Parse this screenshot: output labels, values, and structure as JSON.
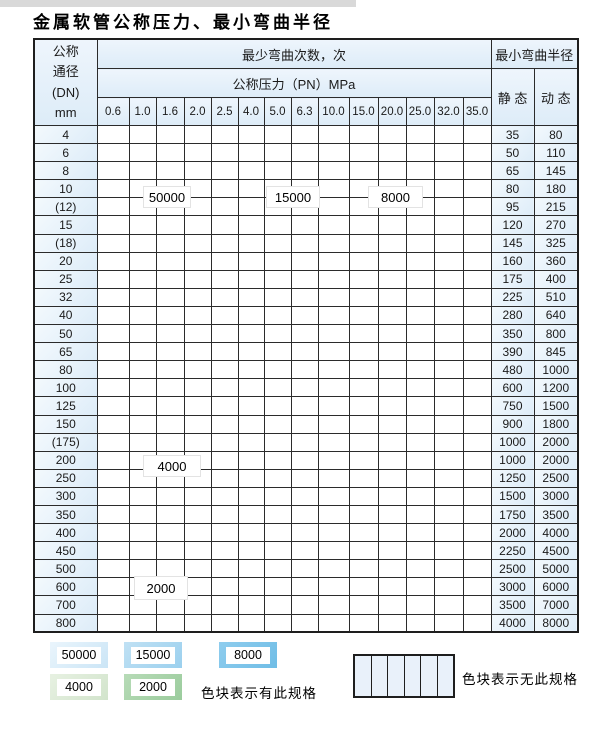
{
  "title": "金属软管公称压力、最小弯曲半径",
  "colors": {
    "blue_50000": "#d3e9f8",
    "blue_15000": "#a9d6f0",
    "blue_8000": "#7fc3e8",
    "green_4000": "#dcead7",
    "green_2000": "#a9d3aa",
    "hatch_bg": "#eef4fb",
    "grid_line": "#2b2b2b",
    "header_bg": "#e4eff9"
  },
  "table": {
    "header": {
      "dn_lines": "公称\n通径\n(DN)\nmm",
      "bend_cycles": "最少弯曲次数，次",
      "pressure": "公称压力（PN）MPa",
      "pressure_values": [
        "0.6",
        "1.0",
        "1.6",
        "2.0",
        "2.5",
        "4.0",
        "5.0",
        "6.3",
        "10.0",
        "15.0",
        "20.0",
        "25.0",
        "32.0",
        "35.0"
      ],
      "radius": "最小弯曲半径",
      "static_label": "静 态",
      "dynamic_label": "动 态"
    },
    "cell_code_meaning": {
      "1": "50000次区",
      "2": "15000次区",
      "3": "8000次区",
      "4": "4000次区",
      "5": "2000次区",
      "x": "无此规格"
    },
    "rows": [
      {
        "dn": "4",
        "cells": "11111222233333",
        "static": "35",
        "dynamic": "80"
      },
      {
        "dn": "6",
        "cells": "111112222333xx",
        "static": "50",
        "dynamic": "110"
      },
      {
        "dn": "8",
        "cells": "111112222333xx",
        "static": "65",
        "dynamic": "145"
      },
      {
        "dn": "10",
        "cells": "111112222333xx",
        "static": "80",
        "dynamic": "180"
      },
      {
        "dn": "(12)",
        "cells": "111112222333xx",
        "static": "95",
        "dynamic": "215"
      },
      {
        "dn": "15",
        "cells": "111112223333xx",
        "static": "120",
        "dynamic": "270"
      },
      {
        "dn": "(18)",
        "cells": "11111222333xxx",
        "static": "145",
        "dynamic": "325"
      },
      {
        "dn": "20",
        "cells": "11111222333xxx",
        "static": "160",
        "dynamic": "360"
      },
      {
        "dn": "25",
        "cells": "1111122233xxxx",
        "static": "175",
        "dynamic": "400"
      },
      {
        "dn": "32",
        "cells": "111112233xxxxx",
        "static": "225",
        "dynamic": "510"
      },
      {
        "dn": "40",
        "cells": "111112233xxxxx",
        "static": "280",
        "dynamic": "640"
      },
      {
        "dn": "50",
        "cells": "11112233xxxxxx",
        "static": "350",
        "dynamic": "800"
      },
      {
        "dn": "65",
        "cells": "11112233xxxxxx",
        "static": "390",
        "dynamic": "845"
      },
      {
        "dn": "80",
        "cells": "1112233xxxxxxx",
        "static": "480",
        "dynamic": "1000"
      },
      {
        "dn": "100",
        "cells": "444444xxxxxxxx",
        "static": "600",
        "dynamic": "1200"
      },
      {
        "dn": "125",
        "cells": "444444xxxxxxxx",
        "static": "750",
        "dynamic": "1500"
      },
      {
        "dn": "150",
        "cells": "444444xxxxxxxx",
        "static": "900",
        "dynamic": "1800"
      },
      {
        "dn": "(175)",
        "cells": "444444xxxxxxxx",
        "static": "1000",
        "dynamic": "2000"
      },
      {
        "dn": "200",
        "cells": "444444xxxxxxxx",
        "static": "1000",
        "dynamic": "2000"
      },
      {
        "dn": "250",
        "cells": "444444xxxxxxxx",
        "static": "1250",
        "dynamic": "2500"
      },
      {
        "dn": "300",
        "cells": "444444xxxxxxxx",
        "static": "1500",
        "dynamic": "3000"
      },
      {
        "dn": "350",
        "cells": "55555xxxxxxxxx",
        "static": "1750",
        "dynamic": "3500"
      },
      {
        "dn": "400",
        "cells": "55555xxxxxxxxx",
        "static": "2000",
        "dynamic": "4000"
      },
      {
        "dn": "450",
        "cells": "55555xxxxxxxxx",
        "static": "2250",
        "dynamic": "4500"
      },
      {
        "dn": "500",
        "cells": "55555xxxxxxxxx",
        "static": "2500",
        "dynamic": "5000"
      },
      {
        "dn": "600",
        "cells": "5555xxxxxxxxxx",
        "static": "3000",
        "dynamic": "6000"
      },
      {
        "dn": "700",
        "cells": "555xxxxxxxxxxx",
        "static": "3500",
        "dynamic": "7000"
      },
      {
        "dn": "800",
        "cells": "555xxxxxxxxxxx",
        "static": "4000",
        "dynamic": "8000"
      }
    ]
  },
  "overlays": [
    {
      "label": "50000"
    },
    {
      "label": "15000"
    },
    {
      "label": "8000"
    },
    {
      "label": "4000"
    },
    {
      "label": "2000"
    }
  ],
  "legend": {
    "items": [
      {
        "label": "50000",
        "code": "1"
      },
      {
        "label": "15000",
        "code": "2"
      },
      {
        "label": "8000",
        "code": "3"
      },
      {
        "label": "4000",
        "code": "4"
      },
      {
        "label": "2000",
        "code": "5"
      }
    ],
    "has_spec": "色块表示有此规格",
    "no_spec": "色块表示无此规格"
  }
}
